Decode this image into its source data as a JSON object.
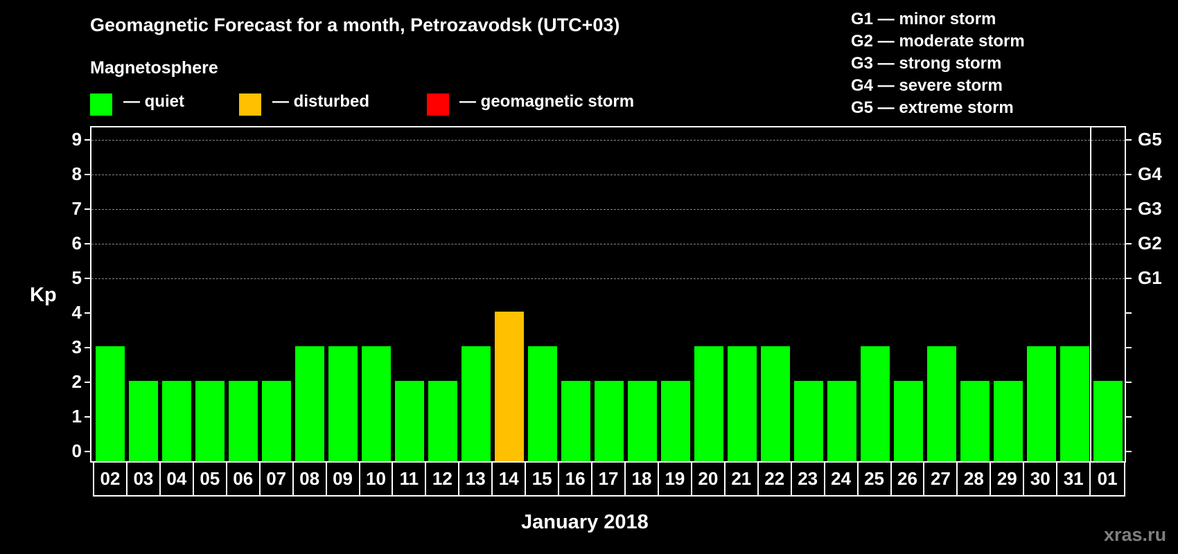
{
  "header": {
    "title": "Geomagnetic Forecast for a month, Petrozavodsk (UTC+03)",
    "section": "Magnetosphere",
    "legend": [
      {
        "label": "— quiet",
        "color": "#00FF00"
      },
      {
        "label": "— disturbed",
        "color": "#FFC000"
      },
      {
        "label": "— geomagnetic storm",
        "color": "#FF0000"
      }
    ],
    "g_scale": [
      "G1 — minor storm",
      "G2 — moderate storm",
      "G3 — strong storm",
      "G4 — severe storm",
      "G5 — extreme storm"
    ]
  },
  "watermark": "xras.ru",
  "chart_data": {
    "type": "bar",
    "title": "Geomagnetic Forecast for a month, Petrozavodsk (UTC+03)",
    "xlabel": "January 2018",
    "ylabel": "Kp",
    "ylim": [
      0,
      9
    ],
    "yticks": [
      "0",
      "1",
      "2",
      "3",
      "4",
      "5",
      "6",
      "7",
      "8",
      "9"
    ],
    "right_axis_labels": [
      {
        "kp": 5,
        "label": "G1"
      },
      {
        "kp": 6,
        "label": "G2"
      },
      {
        "kp": 7,
        "label": "G3"
      },
      {
        "kp": 8,
        "label": "G4"
      },
      {
        "kp": 9,
        "label": "G5"
      }
    ],
    "grid": "dashed horizontal at Kp 5-9",
    "categories": [
      "02",
      "03",
      "04",
      "05",
      "06",
      "07",
      "08",
      "09",
      "10",
      "11",
      "12",
      "13",
      "14",
      "15",
      "16",
      "17",
      "18",
      "19",
      "20",
      "21",
      "22",
      "23",
      "24",
      "25",
      "26",
      "27",
      "28",
      "29",
      "30",
      "31",
      "01"
    ],
    "values": [
      3,
      2,
      2,
      2,
      2,
      2,
      3,
      3,
      3,
      2,
      2,
      3,
      4,
      3,
      2,
      2,
      2,
      2,
      3,
      3,
      3,
      2,
      2,
      3,
      2,
      3,
      2,
      2,
      3,
      3,
      2
    ],
    "status": [
      "quiet",
      "quiet",
      "quiet",
      "quiet",
      "quiet",
      "quiet",
      "quiet",
      "quiet",
      "quiet",
      "quiet",
      "quiet",
      "quiet",
      "disturbed",
      "quiet",
      "quiet",
      "quiet",
      "quiet",
      "quiet",
      "quiet",
      "quiet",
      "quiet",
      "quiet",
      "quiet",
      "quiet",
      "quiet",
      "quiet",
      "quiet",
      "quiet",
      "quiet",
      "quiet",
      "quiet"
    ],
    "colors": {
      "quiet": "#00FF00",
      "disturbed": "#FFC000",
      "storm": "#FF0000"
    },
    "month_divider_before": "01"
  }
}
